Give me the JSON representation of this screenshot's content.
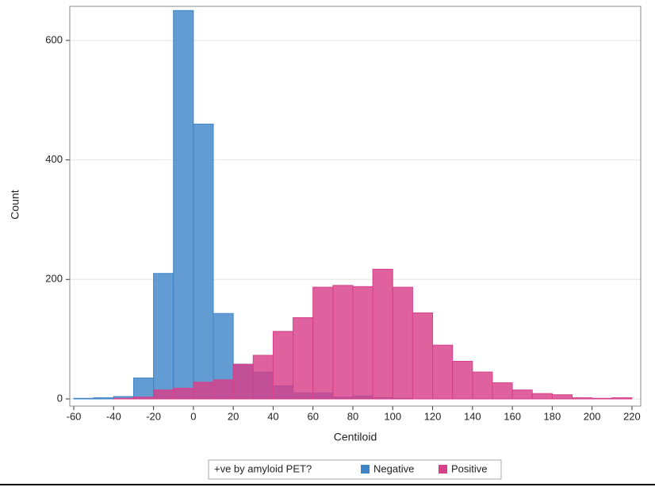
{
  "chart_data": {
    "type": "histogram",
    "x_label": "Centiloid",
    "y_label": "Count",
    "legend_title": "+ve by amyloid PET?",
    "bins": [
      -60,
      -50,
      -40,
      -30,
      -20,
      -10,
      0,
      10,
      20,
      30,
      40,
      50,
      60,
      70,
      80,
      90,
      100,
      110,
      120,
      130,
      140,
      150,
      160,
      170,
      180,
      190,
      200,
      210,
      220
    ],
    "series": [
      {
        "name": "Negative",
        "color": "#3f86c8",
        "values": [
          1,
          2,
          4,
          35,
          210,
          650,
          460,
          143,
          58,
          45,
          22,
          10,
          10,
          3,
          5,
          2,
          1,
          0,
          0,
          0,
          0,
          0,
          0,
          0,
          0,
          0,
          0,
          0
        ]
      },
      {
        "name": "Positive",
        "color": "#d8408a",
        "values": [
          0,
          0,
          1,
          3,
          15,
          18,
          28,
          32,
          58,
          73,
          113,
          136,
          187,
          190,
          188,
          217,
          187,
          144,
          90,
          63,
          45,
          27,
          15,
          9,
          7,
          2,
          1,
          2
        ]
      }
    ],
    "xlim": [
      -62,
      224.4
    ],
    "ylim": [
      -12,
      657
    ],
    "xticks": [
      -60,
      -40,
      -20,
      0,
      20,
      40,
      60,
      80,
      100,
      120,
      140,
      160,
      180,
      200,
      220
    ],
    "yticks": [
      0,
      200,
      400,
      600
    ],
    "grid": true,
    "legend": "bottom"
  }
}
